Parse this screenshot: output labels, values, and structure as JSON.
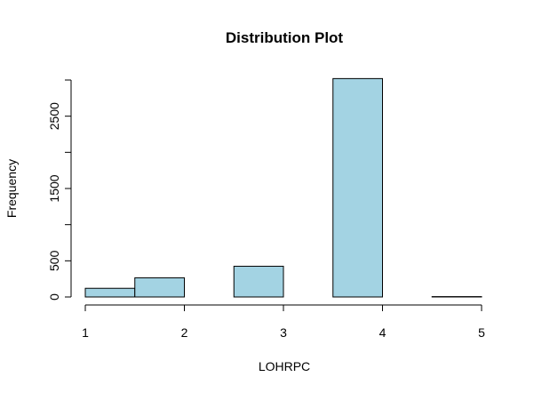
{
  "chart_data": {
    "type": "bar",
    "title": "Distribution Plot",
    "xlabel": "LOHRPC",
    "ylabel": "Frequency",
    "xlim": [
      1,
      5
    ],
    "ylim": [
      0,
      3000
    ],
    "x_ticks": [
      1,
      2,
      3,
      4,
      5
    ],
    "y_ticks": [
      0,
      500,
      1000,
      1500,
      2000,
      2500,
      3000
    ],
    "y_tick_labels": [
      "0",
      "500",
      "",
      "1500",
      "",
      "2500",
      ""
    ],
    "bins": [
      {
        "start": 1.0,
        "end": 1.5,
        "value": 120
      },
      {
        "start": 1.5,
        "end": 2.0,
        "value": 265
      },
      {
        "start": 2.0,
        "end": 2.5,
        "value": 0
      },
      {
        "start": 2.5,
        "end": 3.0,
        "value": 425
      },
      {
        "start": 3.0,
        "end": 3.5,
        "value": 0
      },
      {
        "start": 3.5,
        "end": 4.0,
        "value": 3020
      },
      {
        "start": 4.0,
        "end": 4.5,
        "value": 0
      },
      {
        "start": 4.5,
        "end": 5.0,
        "value": 5
      }
    ],
    "bar_color": "#a3d3e3",
    "bar_stroke": "#000000",
    "grid": false,
    "legend": "none"
  }
}
